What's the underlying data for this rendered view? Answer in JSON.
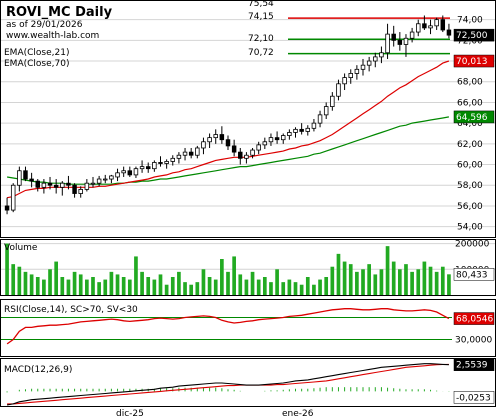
{
  "header": {
    "title": "ROVI_MC Daily",
    "date_line": "as of 29/01/2026",
    "website": "www.wealth-lab.com",
    "ema21_label": "EMA(Close,21)",
    "ema70_label": "EMA(Close,70)"
  },
  "colors": {
    "up_candle": "#ffffff",
    "down_candle": "#000000",
    "ema21": "#dd0000",
    "ema70": "#008800",
    "volume": "#22aa22",
    "rsi": "#dd0000",
    "macd": "#000000",
    "signal": "#dd0000",
    "resistance": "#dd0000",
    "support": "#008800",
    "last_price_tag": "#000000"
  },
  "chart_data": [
    {
      "type": "candlestick",
      "name": "price",
      "y_ticks": [
        54,
        56,
        58,
        60,
        62,
        64,
        66,
        68,
        70,
        72,
        74
      ],
      "ylim": [
        53,
        75.8
      ],
      "x_labels": [
        "dic-25",
        "ene-26"
      ],
      "level_lines": [
        {
          "label": "74,15",
          "value": 74.15,
          "color": "resistance"
        },
        {
          "label": "72,10",
          "value": 72.1,
          "color": "support"
        },
        {
          "label": "70,72",
          "value": 70.72,
          "color": "support"
        }
      ],
      "top_label": "75,54",
      "tags": {
        "last": "72,500",
        "ema21": "70,013",
        "ema70": "64,596"
      },
      "candles": [
        [
          56.0,
          56.8,
          55.2,
          55.6
        ],
        [
          55.6,
          58.2,
          55.4,
          58.0
        ],
        [
          58.0,
          59.8,
          57.4,
          59.4
        ],
        [
          59.4,
          59.8,
          58.4,
          58.6
        ],
        [
          58.6,
          59.2,
          57.8,
          58.4
        ],
        [
          58.4,
          58.6,
          57.4,
          57.8
        ],
        [
          57.8,
          58.6,
          57.2,
          58.2
        ],
        [
          58.2,
          58.8,
          57.6,
          58.0
        ],
        [
          58.0,
          58.6,
          57.2,
          57.8
        ],
        [
          57.8,
          58.4,
          57.0,
          58.2
        ],
        [
          58.2,
          58.9,
          57.6,
          58.0
        ],
        [
          58.0,
          58.2,
          56.8,
          57.2
        ],
        [
          57.2,
          57.9,
          56.8,
          57.6
        ],
        [
          57.6,
          58.6,
          57.4,
          58.2
        ],
        [
          58.2,
          58.8,
          57.8,
          58.2
        ],
        [
          58.2,
          58.9,
          57.9,
          58.6
        ],
        [
          58.6,
          59.0,
          58.2,
          58.6
        ],
        [
          58.6,
          59.0,
          58.2,
          58.9
        ],
        [
          58.8,
          59.6,
          58.4,
          59.2
        ],
        [
          59.2,
          59.8,
          58.8,
          59.4
        ],
        [
          59.4,
          59.8,
          58.8,
          59.0
        ],
        [
          59.0,
          59.8,
          58.7,
          59.6
        ],
        [
          59.6,
          60.4,
          59.2,
          59.8
        ],
        [
          59.8,
          60.2,
          59.2,
          59.6
        ],
        [
          59.6,
          60.4,
          59.3,
          60.2
        ],
        [
          60.2,
          60.8,
          59.8,
          60.1
        ],
        [
          60.1,
          60.5,
          59.6,
          60.3
        ],
        [
          60.3,
          60.9,
          59.9,
          60.6
        ],
        [
          60.6,
          61.2,
          60.1,
          60.9
        ],
        [
          60.9,
          61.6,
          60.4,
          61.2
        ],
        [
          61.2,
          61.6,
          60.6,
          60.9
        ],
        [
          60.9,
          61.8,
          60.6,
          61.6
        ],
        [
          61.6,
          62.6,
          61.0,
          62.2
        ],
        [
          62.2,
          63.0,
          61.6,
          62.6
        ],
        [
          62.6,
          63.4,
          62.0,
          62.9
        ],
        [
          62.9,
          63.7,
          62.0,
          62.4
        ],
        [
          62.4,
          62.8,
          61.4,
          61.8
        ],
        [
          61.8,
          62.4,
          60.8,
          61.2
        ],
        [
          61.2,
          61.6,
          60.0,
          60.6
        ],
        [
          60.6,
          61.2,
          60.1,
          60.9
        ],
        [
          60.9,
          61.6,
          60.6,
          61.4
        ],
        [
          61.4,
          62.2,
          61.0,
          61.9
        ],
        [
          61.9,
          62.6,
          61.5,
          62.2
        ],
        [
          62.2,
          63.0,
          61.8,
          62.6
        ],
        [
          62.6,
          63.2,
          62.0,
          62.4
        ],
        [
          62.4,
          63.0,
          62.0,
          62.8
        ],
        [
          62.8,
          63.4,
          62.4,
          63.1
        ],
        [
          63.1,
          63.6,
          62.6,
          63.4
        ],
        [
          63.4,
          64.0,
          62.9,
          63.2
        ],
        [
          63.2,
          63.8,
          62.8,
          63.5
        ],
        [
          63.5,
          64.4,
          63.2,
          64.0
        ],
        [
          64.0,
          65.2,
          63.6,
          64.8
        ],
        [
          64.8,
          66.0,
          64.4,
          65.6
        ],
        [
          65.6,
          67.0,
          65.2,
          66.6
        ],
        [
          66.6,
          68.2,
          66.2,
          67.8
        ],
        [
          67.8,
          68.8,
          67.2,
          68.4
        ],
        [
          68.4,
          69.2,
          67.8,
          68.8
        ],
        [
          68.8,
          69.6,
          68.2,
          69.2
        ],
        [
          69.2,
          70.2,
          68.6,
          69.6
        ],
        [
          69.6,
          70.4,
          69.0,
          70.0
        ],
        [
          70.0,
          70.8,
          69.4,
          70.4
        ],
        [
          70.4,
          71.4,
          69.8,
          70.8
        ],
        [
          70.8,
          73.6,
          70.2,
          72.6
        ],
        [
          72.6,
          73.4,
          71.4,
          72.0
        ],
        [
          72.0,
          72.8,
          71.0,
          71.6
        ],
        [
          71.6,
          72.6,
          70.4,
          72.2
        ],
        [
          72.2,
          73.2,
          71.8,
          72.8
        ],
        [
          72.8,
          74.0,
          72.4,
          73.6
        ],
        [
          73.6,
          74.4,
          73.0,
          73.2
        ],
        [
          73.2,
          74.0,
          72.6,
          73.4
        ],
        [
          73.4,
          74.2,
          73.0,
          74.0
        ],
        [
          74.0,
          74.4,
          72.8,
          73.0
        ],
        [
          73.0,
          73.6,
          72.2,
          72.5
        ]
      ],
      "ema21": [
        56.8,
        56.9,
        57.2,
        57.5,
        57.6,
        57.7,
        57.7,
        57.8,
        57.8,
        57.8,
        57.8,
        57.8,
        57.8,
        57.8,
        57.8,
        57.9,
        57.9,
        58.0,
        58.1,
        58.2,
        58.3,
        58.4,
        58.5,
        58.6,
        58.8,
        58.9,
        59.0,
        59.2,
        59.3,
        59.5,
        59.6,
        59.8,
        60.0,
        60.2,
        60.4,
        60.5,
        60.6,
        60.7,
        60.7,
        60.7,
        60.8,
        60.9,
        61.0,
        61.1,
        61.2,
        61.3,
        61.5,
        61.6,
        61.8,
        61.9,
        62.1,
        62.3,
        62.6,
        62.9,
        63.3,
        63.7,
        64.1,
        64.5,
        64.9,
        65.3,
        65.7,
        66.1,
        66.6,
        67.0,
        67.4,
        67.7,
        68.1,
        68.5,
        68.8,
        69.1,
        69.4,
        69.8,
        70.0
      ],
      "ema70": [
        58.8,
        58.7,
        58.6,
        58.5,
        58.4,
        58.3,
        58.3,
        58.2,
        58.2,
        58.2,
        58.1,
        58.1,
        58.1,
        58.1,
        58.1,
        58.1,
        58.1,
        58.1,
        58.2,
        58.2,
        58.3,
        58.3,
        58.4,
        58.4,
        58.5,
        58.6,
        58.6,
        58.7,
        58.8,
        58.9,
        59.0,
        59.1,
        59.2,
        59.3,
        59.4,
        59.5,
        59.6,
        59.7,
        59.8,
        59.8,
        59.9,
        60.0,
        60.1,
        60.2,
        60.3,
        60.4,
        60.5,
        60.6,
        60.7,
        60.8,
        61.0,
        61.1,
        61.3,
        61.5,
        61.7,
        61.9,
        62.1,
        62.3,
        62.5,
        62.7,
        62.9,
        63.1,
        63.3,
        63.5,
        63.7,
        63.8,
        64.0,
        64.1,
        64.2,
        64.3,
        64.4,
        64.5,
        64.6
      ]
    },
    {
      "type": "bar",
      "name": "volume",
      "label": "Volume",
      "y_ticks": [
        100000,
        200000
      ],
      "y_tick_labels": [
        "100000",
        "200000"
      ],
      "ylim": [
        0,
        210000
      ],
      "last_tag": "80,433",
      "values": [
        200000,
        120000,
        110000,
        90000,
        80000,
        70000,
        60000,
        100000,
        130000,
        70000,
        60000,
        90000,
        80000,
        60000,
        70000,
        50000,
        60000,
        90000,
        80000,
        70000,
        60000,
        150000,
        90000,
        70000,
        60000,
        80000,
        40000,
        70000,
        90000,
        50000,
        40000,
        50000,
        100000,
        70000,
        60000,
        140000,
        90000,
        150000,
        80000,
        60000,
        90000,
        60000,
        70000,
        50000,
        100000,
        50000,
        60000,
        50000,
        40000,
        70000,
        40000,
        60000,
        70000,
        110000,
        160000,
        130000,
        120000,
        90000,
        100000,
        120000,
        80000,
        100000,
        190000,
        130000,
        100000,
        120000,
        90000,
        100000,
        130000,
        110000,
        90000,
        110000,
        80433
      ]
    },
    {
      "type": "line",
      "name": "rsi",
      "label": "RSI(Close,14), SC>70, SV<30",
      "y_ticks": [
        30,
        70
      ],
      "y_tick_labels": [
        "30,0000",
        "70,0000"
      ],
      "ylim": [
        0,
        100
      ],
      "last_tag": "68,0546",
      "values": [
        22,
        30,
        45,
        52,
        52,
        54,
        55,
        56,
        56,
        57,
        58,
        60,
        62,
        63,
        64,
        65,
        66,
        67,
        66,
        64,
        63,
        64,
        65,
        66,
        68,
        69,
        68,
        67,
        68,
        70,
        71,
        72,
        73,
        72,
        70,
        65,
        62,
        60,
        61,
        63,
        64,
        66,
        67,
        68,
        69,
        70,
        72,
        73,
        74,
        76,
        78,
        80,
        82,
        84,
        85,
        86,
        86,
        85,
        84,
        84,
        85,
        86,
        86,
        84,
        83,
        82,
        82,
        83,
        84,
        83,
        80,
        74,
        68.05
      ]
    },
    {
      "type": "line",
      "name": "macd",
      "label": "MACD(12,26,9)",
      "ylim": [
        -1.4,
        3.0
      ],
      "tags": {
        "macd": "2,5539",
        "hist": "-0,0253"
      },
      "macd": [
        -1.3,
        -1.2,
        -1.0,
        -0.9,
        -0.8,
        -0.75,
        -0.7,
        -0.65,
        -0.6,
        -0.55,
        -0.5,
        -0.45,
        -0.4,
        -0.35,
        -0.3,
        -0.25,
        -0.2,
        -0.15,
        -0.1,
        -0.05,
        0.0,
        0.05,
        0.1,
        0.15,
        0.2,
        0.3,
        0.35,
        0.4,
        0.5,
        0.55,
        0.6,
        0.65,
        0.7,
        0.75,
        0.8,
        0.8,
        0.75,
        0.7,
        0.65,
        0.6,
        0.6,
        0.6,
        0.65,
        0.7,
        0.75,
        0.8,
        0.9,
        1.0,
        1.05,
        1.1,
        1.2,
        1.3,
        1.4,
        1.5,
        1.6,
        1.7,
        1.8,
        1.9,
        2.0,
        2.1,
        2.2,
        2.3,
        2.35,
        2.4,
        2.45,
        2.5,
        2.55,
        2.6,
        2.65,
        2.65,
        2.62,
        2.58,
        2.55
      ],
      "signal": [
        -1.2,
        -1.2,
        -1.15,
        -1.1,
        -1.05,
        -1.0,
        -0.95,
        -0.9,
        -0.85,
        -0.8,
        -0.75,
        -0.7,
        -0.65,
        -0.6,
        -0.55,
        -0.5,
        -0.45,
        -0.4,
        -0.35,
        -0.3,
        -0.25,
        -0.2,
        -0.15,
        -0.1,
        -0.05,
        0.0,
        0.05,
        0.1,
        0.15,
        0.2,
        0.25,
        0.3,
        0.35,
        0.4,
        0.45,
        0.5,
        0.55,
        0.55,
        0.6,
        0.6,
        0.6,
        0.6,
        0.6,
        0.6,
        0.65,
        0.65,
        0.7,
        0.75,
        0.8,
        0.85,
        0.9,
        0.95,
        1.0,
        1.1,
        1.2,
        1.3,
        1.4,
        1.5,
        1.6,
        1.7,
        1.8,
        1.9,
        2.0,
        2.1,
        2.2,
        2.3,
        2.35,
        2.4,
        2.45,
        2.5,
        2.55,
        2.57,
        2.58
      ]
    }
  ]
}
